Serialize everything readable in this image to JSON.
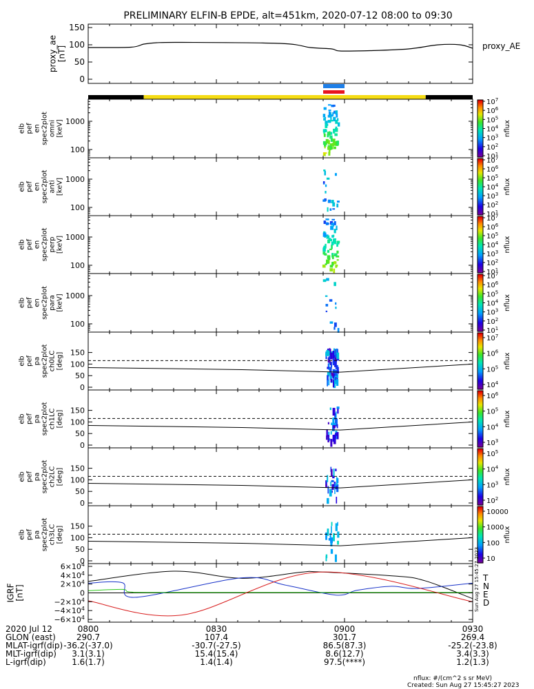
{
  "title": "PRELIMINARY ELFIN-B EPDE, alt=451km, 2020-07-12 08:00 to 09:30",
  "colors": {
    "axis": "#000000",
    "sun_bar": "#f5dc14",
    "shadow_bar": "#000000",
    "ind_blue": "#1e7fe8",
    "ind_red": "#e8141e",
    "grf_T": "#000000",
    "grf_N": "#1530c8",
    "grf_E": "#2ec81c",
    "grf_D": "#d81c1c"
  },
  "panels": [
    {
      "id": "proxy_ae",
      "ylabel": [
        "proxy_ae",
        "[nT]"
      ],
      "right_label": "proxy_AE",
      "yticks": [
        "150",
        "100",
        "50",
        "0"
      ]
    },
    {
      "id": "omni",
      "ylabel": [
        "elb",
        "pef",
        "en",
        "spec2plot",
        "omni",
        "[keV]"
      ],
      "yticks": [
        "1000",
        "100"
      ],
      "cb_ticks": [
        "10^7",
        "10^6",
        "10^5",
        "10^4",
        "10^3",
        "10^2",
        "10^1"
      ],
      "cb_label": "nflux"
    },
    {
      "id": "anti",
      "ylabel": [
        "elb",
        "pef",
        "en",
        "spec2plot",
        "anti",
        "[keV]"
      ],
      "yticks": [
        "1000",
        "100"
      ],
      "cb_ticks": [
        "10^7",
        "10^6",
        "10^5",
        "10^4",
        "10^3",
        "10^2",
        "10^1"
      ],
      "cb_label": "nflux"
    },
    {
      "id": "perp",
      "ylabel": [
        "elb",
        "pef",
        "en",
        "spec2plot",
        "perp",
        "[keV]"
      ],
      "yticks": [
        "1000",
        "100"
      ],
      "cb_ticks": [
        "10^7",
        "10^6",
        "10^5",
        "10^4",
        "10^3",
        "10^2",
        "10^1"
      ],
      "cb_label": "nflux"
    },
    {
      "id": "para",
      "ylabel": [
        "elb",
        "pef",
        "en",
        "spec2plot",
        "para",
        "[keV]"
      ],
      "yticks": [
        "1000",
        "100"
      ],
      "cb_ticks": [
        "10^7",
        "10^6",
        "10^5",
        "10^4",
        "10^3",
        "10^2",
        "10^1"
      ],
      "cb_label": "nflux"
    },
    {
      "id": "ch0LC",
      "ylabel": [
        "elb",
        "pef",
        "pa",
        "spec2plot",
        "ch0LC",
        "[deg]"
      ],
      "yticks": [
        "150",
        "100",
        "50",
        "0"
      ],
      "cb_ticks": [
        "10^7",
        "10^6",
        "10^5",
        "10^4"
      ],
      "cb_label": "nflux"
    },
    {
      "id": "ch1LC",
      "ylabel": [
        "elb",
        "pef",
        "pa",
        "spec2plot",
        "ch1LC",
        "[deg]"
      ],
      "yticks": [
        "150",
        "100",
        "50",
        "0"
      ],
      "cb_ticks": [
        "10^6",
        "10^5",
        "10^4",
        "10^3"
      ],
      "cb_label": "nflux"
    },
    {
      "id": "ch2LC",
      "ylabel": [
        "elb",
        "pef",
        "pa",
        "spec2plot",
        "ch2LC",
        "[deg]"
      ],
      "yticks": [
        "150",
        "100",
        "50",
        "0"
      ],
      "cb_ticks": [
        "10^5",
        "10^4",
        "10^3",
        "10^2"
      ],
      "cb_label": "nflux"
    },
    {
      "id": "ch3LC",
      "ylabel": [
        "elb",
        "pef",
        "pa",
        "spec2plot",
        "ch3LC",
        "[deg]"
      ],
      "yticks": [
        "150",
        "100",
        "50",
        "0"
      ],
      "cb_ticks": [
        "10000",
        "1000",
        "100",
        "10"
      ],
      "cb_label": "nflux"
    },
    {
      "id": "igrf",
      "ylabel": [
        "IGRF",
        "[nT]"
      ],
      "yticks": [
        "6×10^4",
        "4×10^4",
        "2×10^4",
        "0",
        "−2×10^4",
        "−4×10^4",
        "−6×10^4"
      ]
    }
  ],
  "grf_legend": [
    "T",
    "N",
    "E",
    "D"
  ],
  "stamp": "Sun Aug 27 15:45:27 2023",
  "ephemeris": {
    "row_labels": [
      "2020 Jul 12",
      "GLON (east)",
      "MLAT-igrf(dip)",
      "MLT-igrf(dip)",
      "L-igrf(dip)"
    ],
    "columns": [
      [
        "0800",
        "290.7",
        "-36.2(-37.0)",
        "3.1(3.1)",
        "1.6(1.7)"
      ],
      [
        "0830",
        "107.4",
        "-30.7(-27.5)",
        "15.4(15.4)",
        "1.4(1.4)"
      ],
      [
        "0900",
        "301.7",
        "86.5(87.3)",
        "8.6(12.7)",
        "97.5(****)"
      ],
      [
        "0930",
        "269.4",
        "-25.2(-23.8)",
        "3.4(3.3)",
        "1.2(1.3)"
      ]
    ]
  },
  "footer": {
    "units": "nflux: #/(cm^2 s sr MeV)",
    "created": "Created: Sun Aug 27 15:45:27 2023"
  },
  "chart_data": {
    "type": "line",
    "time_range": [
      "2020-07-12 08:00",
      "2020-07-12 09:30"
    ],
    "x_ticks": [
      "0800",
      "0830",
      "0900",
      "0930"
    ],
    "proxy_ae": {
      "name": "proxy_AE",
      "x_min": [
        0,
        10,
        13,
        16,
        22,
        45,
        52,
        57,
        59,
        66,
        75,
        82,
        87,
        90
      ],
      "y": [
        92,
        93,
        102,
        106,
        107,
        104,
        92,
        88,
        82,
        83,
        88,
        100,
        100,
        90
      ],
      "ylim": [
        0,
        160
      ]
    },
    "pa_lines": {
      "dashed_deg": 115,
      "solid_x_min": [
        0,
        36,
        59,
        90
      ],
      "solid_y_deg": [
        85,
        76,
        65,
        100
      ]
    },
    "igrf": {
      "series": [
        {
          "name": "T",
          "x_min": [
            0,
            20,
            36,
            50,
            54,
            72,
            79,
            90
          ],
          "y": [
            26000,
            49000,
            33000,
            47000,
            47500,
            38000,
            27000,
            -13000
          ]
        },
        {
          "name": "N",
          "x_min": [
            0,
            8,
            11,
            36,
            46,
            58,
            63,
            71,
            77,
            90
          ],
          "y": [
            22000,
            23000,
            -10000,
            34000,
            18000,
            -5000,
            6000,
            15000,
            10000,
            22000
          ]
        },
        {
          "name": "E",
          "x_min": [
            0,
            8,
            10,
            20,
            90
          ],
          "y": [
            5000,
            8000,
            2000,
            1000,
            1000
          ]
        },
        {
          "name": "D",
          "x_min": [
            0,
            22,
            54,
            90
          ],
          "y": [
            -18000,
            -50000,
            47000,
            -20000
          ]
        }
      ],
      "ylim": [
        -62000,
        62000
      ]
    },
    "science_zone_indicator": {
      "x_min": [
        55,
        60
      ]
    },
    "sunlight_bar": {
      "shadow_before_min": 13,
      "shadow_after_min": 79
    }
  }
}
